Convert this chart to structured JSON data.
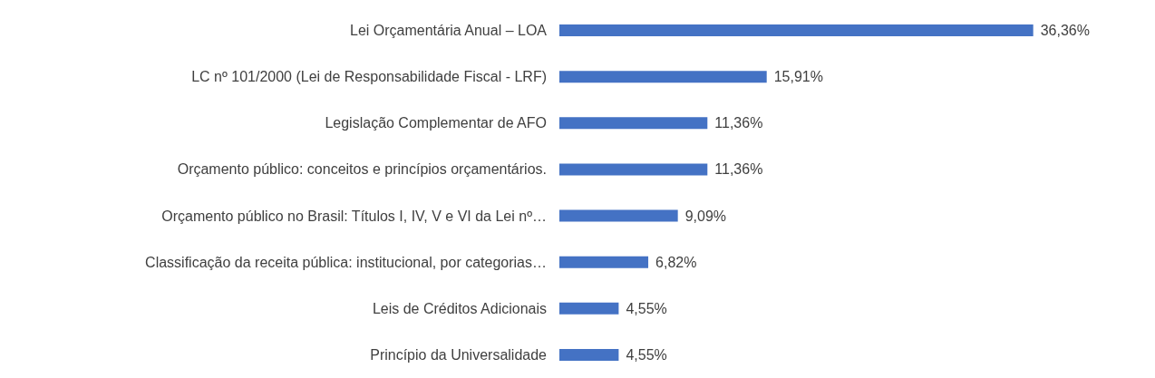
{
  "chart_data": {
    "type": "bar",
    "orientation": "horizontal",
    "categories": [
      "Lei Orçamentária Anual – LOA",
      "LC nº 101/2000 (Lei de Responsabilidade Fiscal - LRF)",
      "Legislação Complementar de AFO",
      "Orçamento público: conceitos e princípios orçamentários.",
      "Orçamento público no Brasil: Títulos I, IV, V e VI da Lei nº…",
      "Classificação da receita pública: institucional, por categorias…",
      "Leis de Créditos Adicionais",
      "Princípio da Universalidade"
    ],
    "values": [
      36.36,
      15.91,
      11.36,
      11.36,
      9.09,
      6.82,
      4.55,
      4.55
    ],
    "value_labels": [
      "36,36%",
      "15,91%",
      "11,36%",
      "11,36%",
      "9,09%",
      "6,82%",
      "4,55%",
      "4,55%"
    ],
    "color": "#4472c4",
    "grid": false
  }
}
